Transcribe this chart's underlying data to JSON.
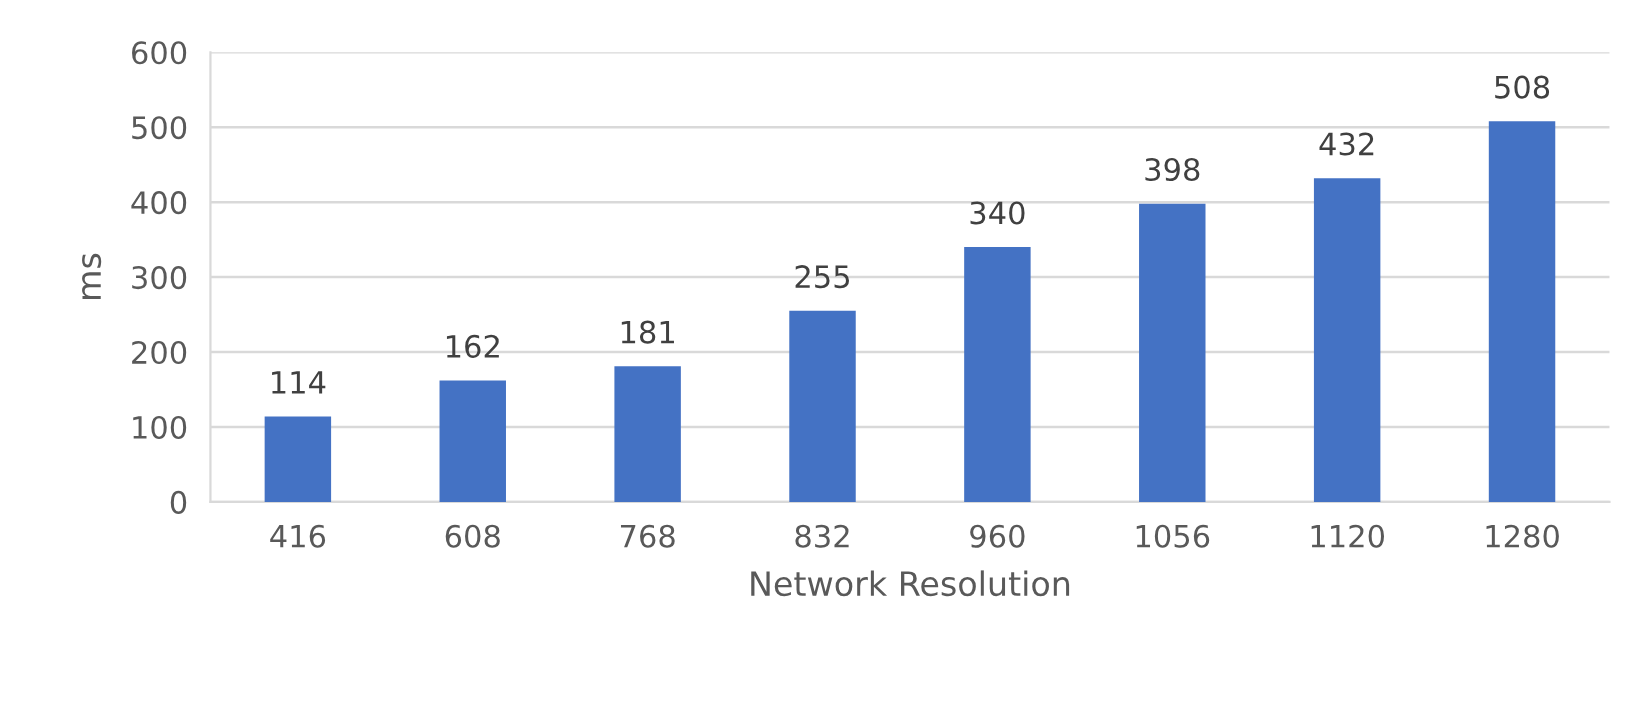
{
  "chart_data": {
    "type": "bar",
    "xlabel": "Network Resolution",
    "ylabel": "ms",
    "categories": [
      "416",
      "608",
      "768",
      "832",
      "960",
      "1056",
      "1120",
      "1280"
    ],
    "values": [
      114,
      162,
      181,
      255,
      340,
      398,
      432,
      508
    ],
    "color": "#4472c4",
    "ylim": [
      0,
      600
    ],
    "yticks": [
      0,
      100,
      200,
      300,
      400,
      500,
      600
    ],
    "grid": "y",
    "data_labels": true
  }
}
